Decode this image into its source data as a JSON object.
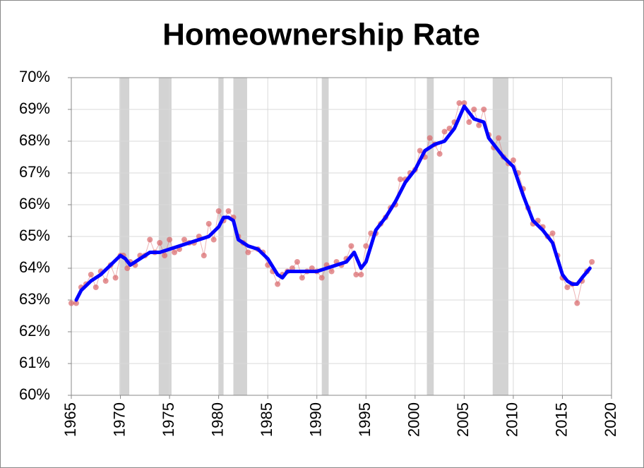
{
  "chart_data": {
    "type": "line",
    "title": "Homeownership Rate",
    "xlim": [
      1965,
      2020
    ],
    "xticks": [
      1965,
      1970,
      1975,
      1980,
      1985,
      1990,
      1995,
      2000,
      2005,
      2010,
      2015,
      2020
    ],
    "ylim": [
      60,
      70
    ],
    "yticks": [
      {
        "value": 60,
        "label": "60%"
      },
      {
        "value": 61,
        "label": "61%"
      },
      {
        "value": 62,
        "label": "62%"
      },
      {
        "value": 63,
        "label": "63%"
      },
      {
        "value": 64,
        "label": "64%"
      },
      {
        "value": 65,
        "label": "65%"
      },
      {
        "value": 66,
        "label": "66%"
      },
      {
        "value": 67,
        "label": "67%"
      },
      {
        "value": 68,
        "label": "68%"
      },
      {
        "value": 69,
        "label": "69%"
      },
      {
        "value": 70,
        "label": "70%"
      }
    ],
    "grid": true,
    "shaded_ranges": {
      "color": "#d3d3d3",
      "ranges": [
        [
          1969.9,
          1970.9
        ],
        [
          1973.9,
          1975.2
        ],
        [
          1980.0,
          1980.5
        ],
        [
          1981.5,
          1982.9
        ],
        [
          1990.5,
          1991.2
        ],
        [
          2001.2,
          2001.9
        ],
        [
          2007.9,
          2009.5
        ]
      ]
    },
    "series": [
      {
        "style": "markers",
        "color": "#d9676a",
        "x": [
          1965,
          1965.5,
          1966,
          1966.5,
          1967,
          1967.5,
          1968,
          1968.5,
          1969,
          1969.5,
          1970,
          1970.3,
          1970.7,
          1971,
          1971.5,
          1972,
          1972.5,
          1973,
          1973.5,
          1974,
          1974.5,
          1975,
          1975.5,
          1976,
          1976.5,
          1977,
          1977.5,
          1978,
          1978.5,
          1979,
          1979.5,
          1980,
          1980.5,
          1981,
          1981.5,
          1982,
          1982.5,
          1983,
          1984,
          1984.5,
          1985,
          1985.5,
          1986,
          1986.5,
          1987,
          1987.5,
          1988,
          1988.5,
          1989,
          1989.5,
          1990,
          1990.5,
          1991,
          1991.5,
          1992,
          1992.5,
          1993,
          1993.5,
          1994,
          1994.5,
          1995,
          1995.5,
          1996,
          1996.5,
          1997,
          1997.5,
          1998,
          1998.5,
          1999,
          1999.5,
          2000,
          2000.5,
          2001,
          2001.5,
          2002,
          2002.5,
          2003,
          2003.5,
          2004,
          2004.5,
          2005,
          2005.5,
          2006,
          2006.5,
          2007,
          2007.5,
          2008,
          2008.5,
          2009,
          2009.5,
          2010,
          2010.5,
          2011,
          2011.5,
          2012,
          2012.5,
          2013,
          2013.5,
          2014,
          2014.5,
          2015,
          2015.5,
          2016,
          2016.5,
          2017,
          2017.5,
          2018
        ],
        "values": [
          62.9,
          62.9,
          63.4,
          63.5,
          63.8,
          63.4,
          63.9,
          63.6,
          64.1,
          63.7,
          64.4,
          64.4,
          64.0,
          64.2,
          64.1,
          64.4,
          64.4,
          64.9,
          64.5,
          64.8,
          64.4,
          64.9,
          64.5,
          64.6,
          64.9,
          64.8,
          64.8,
          65.0,
          64.4,
          65.4,
          64.9,
          65.8,
          65.5,
          65.8,
          65.6,
          65.0,
          64.8,
          64.5,
          64.6,
          64.5,
          64.1,
          63.9,
          63.5,
          63.8,
          63.9,
          64.0,
          64.2,
          63.7,
          63.9,
          64.0,
          63.9,
          63.7,
          64.1,
          63.9,
          64.2,
          64.1,
          64.3,
          64.7,
          63.8,
          63.8,
          64.7,
          65.1,
          65.1,
          65.4,
          65.6,
          65.9,
          66.0,
          66.8,
          66.8,
          67.0,
          67.1,
          67.7,
          67.5,
          68.1,
          67.9,
          67.6,
          68.3,
          68.4,
          68.6,
          69.2,
          69.2,
          68.6,
          69.0,
          68.5,
          69.0,
          68.2,
          67.8,
          68.1,
          67.5,
          67.3,
          67.4,
          67.0,
          66.5,
          65.9,
          65.4,
          65.5,
          65.3,
          65.0,
          65.1,
          64.4,
          63.7,
          63.4,
          63.5,
          62.9,
          63.6,
          63.9,
          64.2
        ]
      },
      {
        "style": "line",
        "color": "#0000ff",
        "x": [
          1965.5,
          1966,
          1967,
          1968,
          1969,
          1970,
          1970.5,
          1971,
          1972,
          1973,
          1974,
          1975,
          1976,
          1977,
          1978,
          1979,
          1980,
          1980.5,
          1981,
          1981.5,
          1982,
          1983,
          1984,
          1985,
          1986,
          1986.5,
          1987,
          1988,
          1989,
          1990,
          1991,
          1992,
          1993,
          1993.8,
          1994.5,
          1995,
          1996,
          1997,
          1998,
          1999,
          2000,
          2001,
          2002,
          2003,
          2004,
          2005,
          2005.5,
          2006,
          2007,
          2007.5,
          2008,
          2009,
          2010,
          2011,
          2012,
          2013,
          2014,
          2015,
          2015.5,
          2016,
          2016.5,
          2017,
          2017.8
        ],
        "values": [
          63.0,
          63.3,
          63.6,
          63.8,
          64.1,
          64.4,
          64.3,
          64.1,
          64.3,
          64.5,
          64.5,
          64.6,
          64.7,
          64.8,
          64.9,
          65.0,
          65.3,
          65.6,
          65.6,
          65.5,
          64.9,
          64.7,
          64.6,
          64.3,
          63.8,
          63.7,
          63.9,
          63.9,
          63.9,
          63.9,
          64.0,
          64.1,
          64.2,
          64.5,
          64.0,
          64.2,
          65.2,
          65.6,
          66.1,
          66.7,
          67.1,
          67.7,
          67.9,
          68.0,
          68.4,
          69.1,
          68.9,
          68.7,
          68.6,
          68.1,
          67.9,
          67.5,
          67.2,
          66.3,
          65.5,
          65.2,
          64.8,
          63.8,
          63.6,
          63.5,
          63.5,
          63.7,
          64.0
        ]
      }
    ]
  }
}
